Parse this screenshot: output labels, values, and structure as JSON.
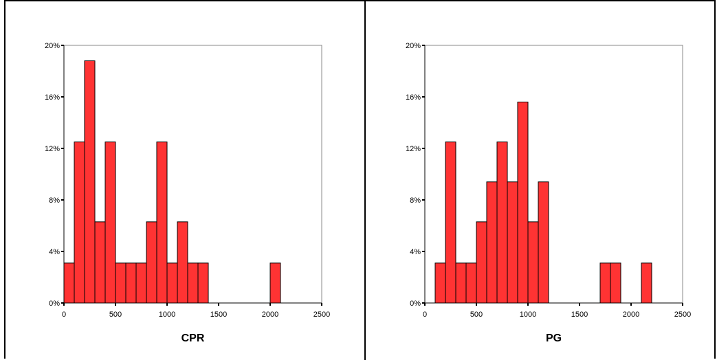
{
  "chart_data": [
    {
      "type": "bar",
      "title": "",
      "xlabel": "CPR",
      "ylabel": "",
      "xlim": [
        0,
        2500
      ],
      "ylim": [
        0,
        20
      ],
      "xticks": [
        0,
        500,
        1000,
        1500,
        2000,
        2500
      ],
      "yticks": [
        0,
        4,
        8,
        12,
        16,
        20
      ],
      "ytick_labels": [
        "0%",
        "4%",
        "8%",
        "12%",
        "16%",
        "20%"
      ],
      "bin_width": 100,
      "bins": [
        {
          "x0": 0,
          "x1": 100,
          "value": 3.1
        },
        {
          "x0": 100,
          "x1": 200,
          "value": 12.5
        },
        {
          "x0": 200,
          "x1": 300,
          "value": 18.8
        },
        {
          "x0": 300,
          "x1": 400,
          "value": 6.3
        },
        {
          "x0": 400,
          "x1": 500,
          "value": 12.5
        },
        {
          "x0": 500,
          "x1": 600,
          "value": 3.1
        },
        {
          "x0": 600,
          "x1": 700,
          "value": 3.1
        },
        {
          "x0": 700,
          "x1": 800,
          "value": 3.1
        },
        {
          "x0": 800,
          "x1": 900,
          "value": 6.3
        },
        {
          "x0": 900,
          "x1": 1000,
          "value": 12.5
        },
        {
          "x0": 1000,
          "x1": 1100,
          "value": 3.1
        },
        {
          "x0": 1100,
          "x1": 1200,
          "value": 6.3
        },
        {
          "x0": 1200,
          "x1": 1300,
          "value": 3.1
        },
        {
          "x0": 1300,
          "x1": 1400,
          "value": 3.1
        },
        {
          "x0": 2000,
          "x1": 2100,
          "value": 3.1
        }
      ],
      "bar_color": "#ff3333",
      "grid": false
    },
    {
      "type": "bar",
      "title": "",
      "xlabel": "PG",
      "ylabel": "",
      "xlim": [
        0,
        2500
      ],
      "ylim": [
        0,
        20
      ],
      "xticks": [
        0,
        500,
        1000,
        1500,
        2000,
        2500
      ],
      "yticks": [
        0,
        4,
        8,
        12,
        16,
        20
      ],
      "ytick_labels": [
        "0%",
        "4%",
        "8%",
        "12%",
        "16%",
        "20%"
      ],
      "bin_width": 100,
      "bins": [
        {
          "x0": 100,
          "x1": 200,
          "value": 3.1
        },
        {
          "x0": 200,
          "x1": 300,
          "value": 12.5
        },
        {
          "x0": 300,
          "x1": 400,
          "value": 3.1
        },
        {
          "x0": 400,
          "x1": 500,
          "value": 3.1
        },
        {
          "x0": 500,
          "x1": 600,
          "value": 6.3
        },
        {
          "x0": 600,
          "x1": 700,
          "value": 9.4
        },
        {
          "x0": 700,
          "x1": 800,
          "value": 12.5
        },
        {
          "x0": 800,
          "x1": 900,
          "value": 9.4
        },
        {
          "x0": 900,
          "x1": 1000,
          "value": 15.6
        },
        {
          "x0": 1000,
          "x1": 1100,
          "value": 6.3
        },
        {
          "x0": 1100,
          "x1": 1200,
          "value": 9.4
        },
        {
          "x0": 1700,
          "x1": 1800,
          "value": 3.1
        },
        {
          "x0": 1800,
          "x1": 1900,
          "value": 3.1
        },
        {
          "x0": 2100,
          "x1": 2200,
          "value": 3.1
        }
      ],
      "bar_color": "#ff3333",
      "grid": false
    }
  ]
}
